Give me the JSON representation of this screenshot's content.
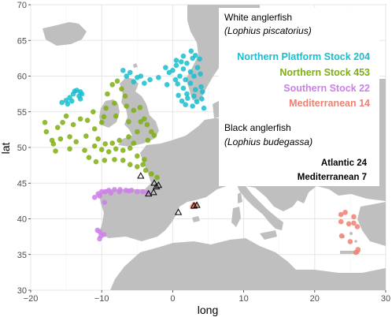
{
  "chart_data": {
    "type": "scatter",
    "xlabel": "long",
    "ylabel": "lat",
    "xlim": [
      -20,
      30
    ],
    "ylim": [
      30,
      70
    ],
    "xticks": [
      "−20",
      "−10",
      "0",
      "10",
      "20",
      "30"
    ],
    "yticks": [
      "30",
      "35",
      "40",
      "45",
      "50",
      "55",
      "60",
      "65",
      "70"
    ],
    "grid": true,
    "legend_position": "top-right",
    "legend": {
      "white_title": "White anglerfish",
      "white_species": "(Lophius piscatorius)",
      "black_title": "Black anglerfish",
      "black_species": "(Lophius budegassa)",
      "white_entries": [
        {
          "label": "Northern Platform Stock 204",
          "color": "#17becf"
        },
        {
          "label": "Northern Stock 453",
          "color": "#7fae0e"
        },
        {
          "label": "Southern Stock   22",
          "color": "#cc7fea"
        },
        {
          "label": "Mediterranean   14",
          "color": "#f08070"
        }
      ],
      "black_entries": [
        {
          "label": "Atlantic 24"
        },
        {
          "label": "Mediterranean   7"
        }
      ]
    },
    "colors": {
      "land": "#bfbfbf",
      "panel": "#ffffff",
      "grid": "#ebebeb",
      "northern_platform": "#17becf",
      "northern": "#7fae0e",
      "southern": "#cc7fea",
      "mediterranean": "#f08070"
    },
    "series": [
      {
        "name": "Northern Platform Stock 204",
        "color": "#17becf",
        "points": [
          [
            -13.5,
            58
          ],
          [
            -13,
            57.8
          ],
          [
            -14,
            57.5
          ],
          [
            -13.2,
            57.2
          ],
          [
            -14.5,
            57
          ],
          [
            -15,
            56.6
          ],
          [
            -15.6,
            56.3
          ],
          [
            -14.2,
            56.5
          ],
          [
            -13.8,
            57.9
          ],
          [
            -12.8,
            57.5
          ],
          [
            -13,
            56.8
          ],
          [
            -14.8,
            56.1
          ],
          [
            -7,
            60.8
          ],
          [
            -6,
            60.5
          ],
          [
            -5,
            59.8
          ],
          [
            -6.5,
            60
          ],
          [
            -4,
            59
          ],
          [
            -5.5,
            59.2
          ],
          [
            -4.5,
            60
          ],
          [
            -3.2,
            59.5
          ],
          [
            -2,
            59.8
          ],
          [
            -1,
            61.2
          ],
          [
            0,
            60.8
          ],
          [
            0.5,
            61.5
          ],
          [
            1.2,
            62
          ],
          [
            1.5,
            61
          ],
          [
            2,
            61.8
          ],
          [
            2.5,
            60.6
          ],
          [
            1,
            60
          ],
          [
            1.8,
            59.5
          ],
          [
            2.5,
            59
          ],
          [
            3,
            60
          ],
          [
            3.5,
            61.2
          ],
          [
            3.8,
            62.4
          ],
          [
            2.8,
            62.5
          ],
          [
            4,
            58.5
          ],
          [
            0.4,
            59.5
          ],
          [
            -0.8,
            58.8
          ],
          [
            1.5,
            58.3
          ],
          [
            2,
            57.5
          ],
          [
            1.3,
            56.5
          ],
          [
            3,
            57.2
          ],
          [
            4.2,
            57.8
          ],
          [
            2.8,
            55.8
          ],
          [
            3.4,
            56.4
          ],
          [
            4.4,
            55.5
          ],
          [
            2.1,
            56.9
          ],
          [
            0.8,
            57.3
          ],
          [
            3.2,
            58.1
          ],
          [
            1.8,
            56.0
          ],
          [
            0.5,
            62.2
          ],
          [
            1.5,
            62.8
          ],
          [
            2.6,
            63.5
          ],
          [
            3.2,
            62.9
          ],
          [
            -0.5,
            60.5
          ],
          [
            3.9,
            60.3
          ],
          [
            4.1,
            56.8
          ],
          [
            0.7,
            58.9
          ]
        ]
      },
      {
        "name": "Northern Stock 453",
        "color": "#7fae0e",
        "points": [
          [
            -18,
            53.5
          ],
          [
            -17.8,
            52.2
          ],
          [
            -17,
            51
          ],
          [
            -16.2,
            52.8
          ],
          [
            -15.5,
            53.5
          ],
          [
            -15,
            54.4
          ],
          [
            -14,
            53.2
          ],
          [
            -13,
            54
          ],
          [
            -12,
            53.8
          ],
          [
            -11,
            52.6
          ],
          [
            -10.5,
            51.2
          ],
          [
            -15.8,
            51.2
          ],
          [
            -14.5,
            51.5
          ],
          [
            -16.8,
            50.5
          ],
          [
            -13.6,
            50.8
          ],
          [
            -12.2,
            51.6
          ],
          [
            -11,
            50.2
          ],
          [
            -10,
            49.7
          ],
          [
            -9,
            49.4
          ],
          [
            -8,
            49.8
          ],
          [
            -7,
            49.6
          ],
          [
            -6,
            49.9
          ],
          [
            -5.5,
            50.6
          ],
          [
            -6.2,
            51.5
          ],
          [
            -7.5,
            51
          ],
          [
            -8.5,
            50.6
          ],
          [
            -9.5,
            50.5
          ],
          [
            -12.4,
            49.6
          ],
          [
            -11.8,
            48.6
          ],
          [
            -10.8,
            48
          ],
          [
            -9.6,
            48.2
          ],
          [
            -8.2,
            48.3
          ],
          [
            -7,
            48.2
          ],
          [
            -6,
            47.6
          ],
          [
            -5,
            47.3
          ],
          [
            -4.2,
            47.6
          ],
          [
            -4,
            48.3
          ],
          [
            -5,
            48.8
          ],
          [
            -3.8,
            46.8
          ],
          [
            -3,
            46.3
          ],
          [
            -2.2,
            45.8
          ],
          [
            -6.2,
            53.6
          ],
          [
            -4.5,
            53.6
          ],
          [
            -5,
            52.2
          ],
          [
            -4,
            54
          ],
          [
            -8,
            54.4
          ],
          [
            -9.4,
            55.5
          ],
          [
            -8.2,
            56.2
          ],
          [
            -9.7,
            54.3
          ],
          [
            -11.2,
            55
          ],
          [
            -10,
            53.5
          ],
          [
            -4.6,
            55.6
          ],
          [
            -5.5,
            55.2
          ],
          [
            -6.5,
            55.8
          ],
          [
            -6.7,
            57.2
          ],
          [
            -7.2,
            58.2
          ],
          [
            -9.2,
            57.5
          ],
          [
            -8.5,
            58.8
          ],
          [
            -7.8,
            59.3
          ],
          [
            -3.5,
            51
          ],
          [
            -3,
            52.2
          ],
          [
            -3.6,
            53.2
          ],
          [
            -2.6,
            51.7
          ],
          [
            -14.5,
            49.8
          ],
          [
            -16.5,
            49.5
          ]
        ]
      },
      {
        "name": "Southern Stock 22",
        "color": "#cc7fea",
        "points": [
          [
            -10.5,
            43.5
          ],
          [
            -10,
            43.8
          ],
          [
            -9.5,
            43.8
          ],
          [
            -9,
            44
          ],
          [
            -8.2,
            44.1
          ],
          [
            -7.4,
            44.1
          ],
          [
            -6.6,
            44.0
          ],
          [
            -5.8,
            44.0
          ],
          [
            -5,
            43.8
          ],
          [
            -4.2,
            43.8
          ],
          [
            -3.5,
            43.7
          ],
          [
            -7.5,
            43.8
          ],
          [
            -6.2,
            43.9
          ],
          [
            -8.7,
            43.6
          ],
          [
            -10.3,
            43.2
          ],
          [
            -11,
            43
          ],
          [
            -9.6,
            42.3
          ],
          [
            -10.3,
            38.2
          ],
          [
            -10.1,
            37.6
          ],
          [
            -10.3,
            37.2
          ],
          [
            -9.7,
            37.8
          ],
          [
            -10.6,
            38.4
          ]
        ]
      },
      {
        "name": "Mediterranean 14",
        "color": "#f08070",
        "points": [
          [
            3,
            42
          ],
          [
            3.3,
            41.9
          ],
          [
            2.8,
            41.7
          ],
          [
            23.7,
            40.6
          ],
          [
            25.5,
            40.3
          ],
          [
            24.3,
            40.9
          ],
          [
            23.7,
            39.6
          ],
          [
            24.8,
            39.3
          ],
          [
            25.5,
            39.4
          ],
          [
            26,
            38.9
          ],
          [
            23.8,
            37.6
          ],
          [
            25,
            36.8
          ],
          [
            26.1,
            35.7
          ],
          [
            25.8,
            35.3
          ]
        ]
      },
      {
        "name": "Atlantic 24",
        "marker": "triangle",
        "points": [
          [
            -4.5,
            46.0
          ],
          [
            -2.6,
            45.0
          ],
          [
            -2.3,
            44.5
          ],
          [
            -2.0,
            44.7
          ],
          [
            -2.7,
            43.7
          ],
          [
            -3.4,
            43.5
          ]
        ]
      },
      {
        "name": "Mediterranean 7",
        "marker": "triangle",
        "points": [
          [
            0.8,
            40.9
          ],
          [
            3,
            41.8
          ],
          [
            3.4,
            41.9
          ]
        ]
      }
    ]
  }
}
